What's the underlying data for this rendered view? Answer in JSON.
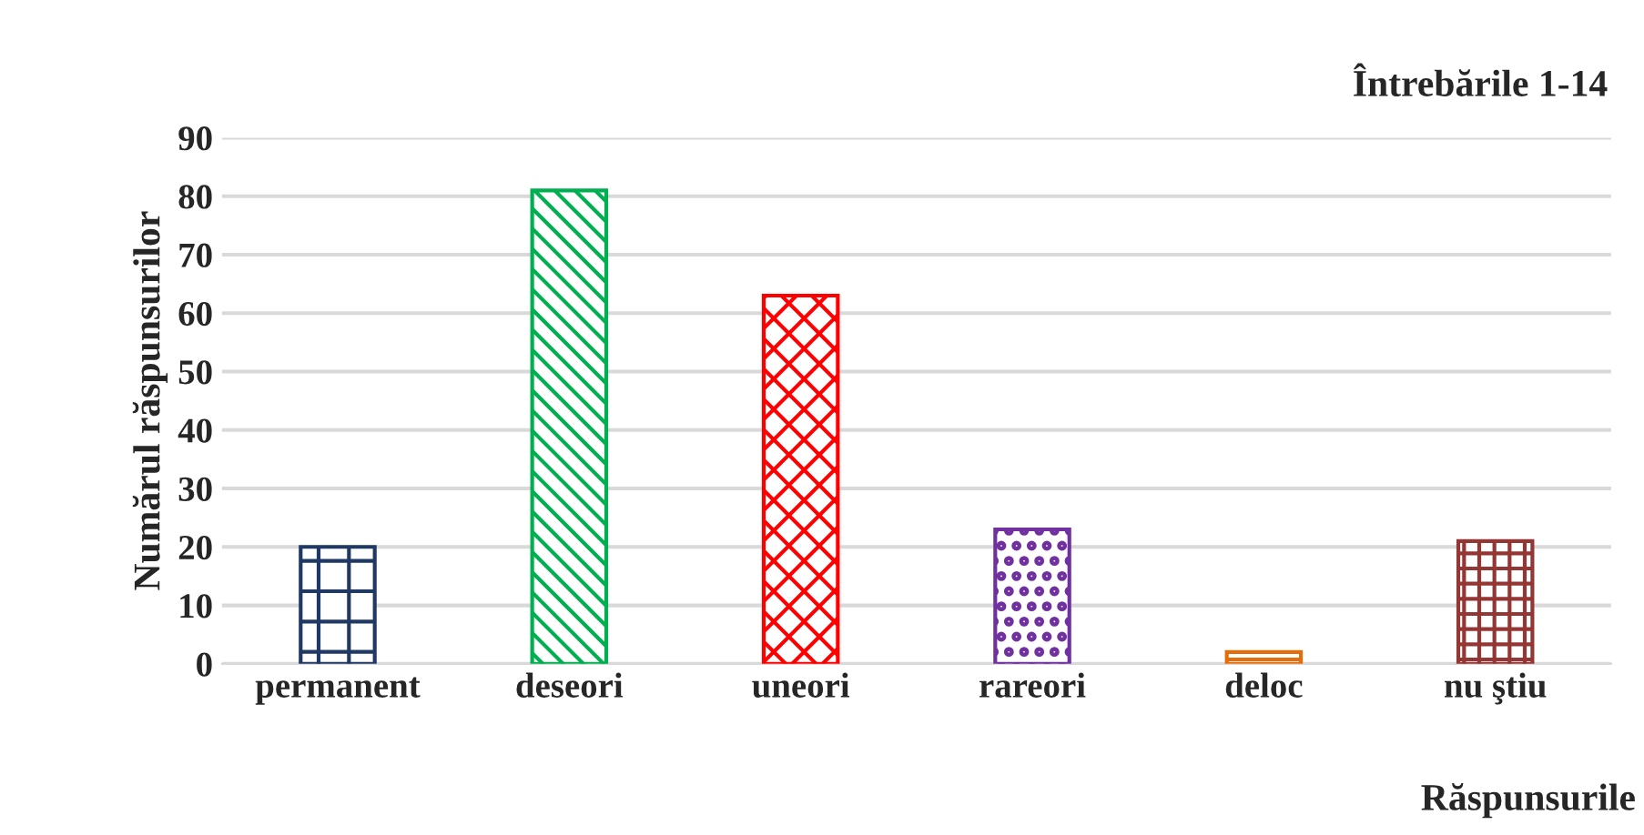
{
  "chart_data": {
    "type": "bar",
    "title": "Întrebările 1-14",
    "xlabel": "Răspunsurile",
    "ylabel": "Numărul răspunsurilor",
    "categories": [
      "permanent",
      "deseori",
      "uneori",
      "rareori",
      "deloc",
      "nu ştiu"
    ],
    "values": [
      20,
      81,
      63,
      23,
      2,
      21
    ],
    "colors": [
      "#1f3864",
      "#00b050",
      "#ff0000",
      "#7030a0",
      "#e46c0a",
      "#943634"
    ],
    "ylim": [
      0,
      90
    ],
    "yticks": [
      0,
      10,
      20,
      30,
      40,
      50,
      60,
      70,
      80,
      90
    ],
    "grid": "y",
    "legend": false
  }
}
